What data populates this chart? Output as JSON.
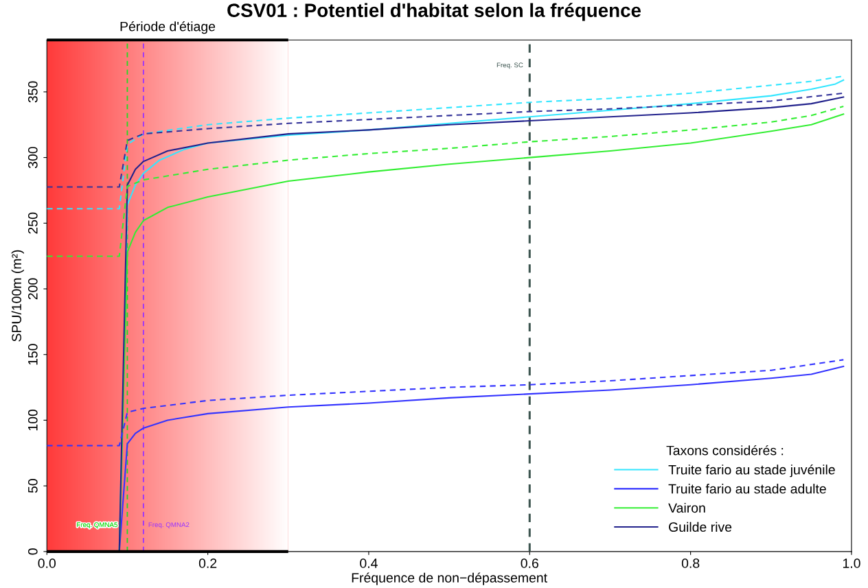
{
  "chart_data": {
    "type": "line",
    "title": "CSV01 : Potentiel d'habitat selon la fréquence",
    "xlabel": "Fréquence de non−dépassement",
    "ylabel": "SPU/100m (m²)",
    "legend_title": "Taxons considérés :",
    "xlim": [
      0,
      1
    ],
    "ylim": [
      0,
      389.5
    ],
    "xticks": [
      {
        "value": 0,
        "label": "0.0"
      },
      {
        "value": 0.2,
        "label": "0.2"
      },
      {
        "value": 0.4,
        "label": "0.4"
      },
      {
        "value": 0.6,
        "label": "0.6"
      },
      {
        "value": 0.8,
        "label": "0.8"
      },
      {
        "value": 1,
        "label": "1.0"
      }
    ],
    "yticks": [
      0,
      50,
      100,
      150,
      200,
      250,
      300,
      350
    ],
    "grid": false,
    "legend": "bottom right",
    "marker": "none",
    "bands": [
      {
        "axis": "x",
        "from": 0,
        "to": 0.3,
        "label": "Période d'étiage",
        "color": "#ff3b3b"
      }
    ],
    "ref_lines": [
      {
        "axis": "x",
        "value": 0.1,
        "label": "Freq. QMNA5",
        "color": "#22dd22",
        "line_style": "dashed"
      },
      {
        "axis": "x",
        "value": 0.12,
        "label": "Freq. QMNA2",
        "color": "#9933ff",
        "line_style": "dashed"
      },
      {
        "axis": "x",
        "value": 0.6,
        "label": "Freq. SC",
        "color": "#3d5550",
        "line_style": "dashed"
      }
    ],
    "series": [
      {
        "name": "Truite fario au stade juvénile",
        "color": "#33e6ff",
        "line_style": "solid",
        "x": [
          0.09,
          0.1,
          0.11,
          0.12,
          0.14,
          0.17,
          0.2,
          0.3,
          0.4,
          0.5,
          0.6,
          0.7,
          0.8,
          0.9,
          0.95,
          0.98,
          0.99
        ],
        "values": [
          0,
          264,
          279,
          288,
          298,
          306,
          311,
          317,
          321,
          326,
          331,
          336,
          341,
          347,
          352,
          356,
          359
        ]
      },
      {
        "name": "Truite fario au stade adulte",
        "color": "#3333ff",
        "line_style": "solid",
        "x": [
          0.09,
          0.1,
          0.11,
          0.12,
          0.15,
          0.2,
          0.3,
          0.4,
          0.5,
          0.6,
          0.7,
          0.8,
          0.9,
          0.95,
          0.99
        ],
        "values": [
          0,
          82,
          90,
          94,
          100,
          105,
          110,
          113,
          117,
          120,
          123,
          127,
          132,
          135,
          141
        ]
      },
      {
        "name": "Vairon",
        "color": "#33ee33",
        "line_style": "solid",
        "x": [
          0.09,
          0.1,
          0.11,
          0.12,
          0.15,
          0.2,
          0.3,
          0.4,
          0.5,
          0.6,
          0.7,
          0.8,
          0.9,
          0.95,
          0.99
        ],
        "values": [
          0,
          228,
          243,
          252,
          262,
          270,
          282,
          289,
          295,
          300,
          305,
          311,
          320,
          325,
          333
        ]
      },
      {
        "name": "Guilde rive",
        "color": "#22228c",
        "line_style": "solid",
        "x": [
          0.09,
          0.1,
          0.11,
          0.12,
          0.15,
          0.2,
          0.3,
          0.4,
          0.5,
          0.6,
          0.7,
          0.8,
          0.9,
          0.95,
          0.99
        ],
        "values": [
          0,
          279,
          291,
          297,
          305,
          311,
          318,
          321,
          325,
          328,
          331,
          334,
          338,
          341,
          346
        ]
      },
      {
        "color": "#33e6ff",
        "line_style": "dashed",
        "x": [
          0,
          0.09,
          0.1,
          0.12,
          0.2,
          0.3,
          0.4,
          0.5,
          0.6,
          0.7,
          0.8,
          0.9,
          0.95,
          0.99
        ],
        "values": [
          261,
          261,
          310,
          318,
          325,
          330,
          334,
          338,
          342,
          345,
          349,
          355,
          358,
          362
        ]
      },
      {
        "color": "#3333ff",
        "line_style": "dashed",
        "x": [
          0,
          0.09,
          0.1,
          0.12,
          0.2,
          0.3,
          0.4,
          0.5,
          0.6,
          0.7,
          0.8,
          0.9,
          0.99
        ],
        "values": [
          80.6,
          80.6,
          106,
          109,
          115,
          119,
          122,
          125,
          127,
          130,
          134,
          138,
          146
        ]
      },
      {
        "color": "#33ee33",
        "line_style": "dashed",
        "x": [
          0,
          0.09,
          0.1,
          0.12,
          0.2,
          0.3,
          0.4,
          0.5,
          0.6,
          0.7,
          0.8,
          0.9,
          0.95,
          0.99
        ],
        "values": [
          224.8,
          224.8,
          278,
          283,
          291,
          298,
          303,
          307,
          312,
          316,
          321,
          327,
          332,
          339
        ]
      },
      {
        "color": "#333399",
        "line_style": "dashed",
        "x": [
          0,
          0.09,
          0.1,
          0.12,
          0.2,
          0.3,
          0.4,
          0.5,
          0.6,
          0.7,
          0.8,
          0.9,
          0.99
        ],
        "values": [
          277.6,
          277.6,
          313,
          318,
          322,
          326,
          329,
          332,
          335,
          337,
          340,
          343,
          349
        ]
      }
    ]
  }
}
